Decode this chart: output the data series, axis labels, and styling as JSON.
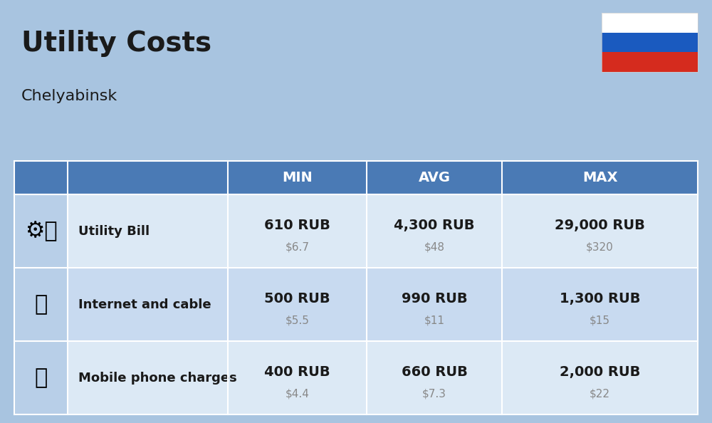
{
  "title": "Utility Costs",
  "subtitle": "Chelyabinsk",
  "background_color": "#a8c4e0",
  "header_color": "#4a7ab5",
  "header_text_color": "#ffffff",
  "row_colors": [
    "#dce9f5",
    "#c8daf0"
  ],
  "icon_col_color": "#b8cfe8",
  "text_color": "#1a1a1a",
  "subtext_color": "#888888",
  "columns": [
    "MIN",
    "AVG",
    "MAX"
  ],
  "rows": [
    {
      "label": "Utility Bill",
      "icon": "utility",
      "min_rub": "610 RUB",
      "min_usd": "$6.7",
      "avg_rub": "4,300 RUB",
      "avg_usd": "$48",
      "max_rub": "29,000 RUB",
      "max_usd": "$320"
    },
    {
      "label": "Internet and cable",
      "icon": "internet",
      "min_rub": "500 RUB",
      "min_usd": "$5.5",
      "avg_rub": "990 RUB",
      "avg_usd": "$11",
      "max_rub": "1,300 RUB",
      "max_usd": "$15"
    },
    {
      "label": "Mobile phone charges",
      "icon": "mobile",
      "min_rub": "400 RUB",
      "min_usd": "$4.4",
      "avg_rub": "660 RUB",
      "avg_usd": "$7.3",
      "max_rub": "2,000 RUB",
      "max_usd": "$22"
    }
  ],
  "flag_colors": [
    "#ffffff",
    "#1a5abf",
    "#d52b1e"
  ],
  "title_fontsize": 28,
  "subtitle_fontsize": 16,
  "header_fontsize": 14,
  "label_fontsize": 13,
  "value_fontsize": 14,
  "subvalue_fontsize": 11
}
